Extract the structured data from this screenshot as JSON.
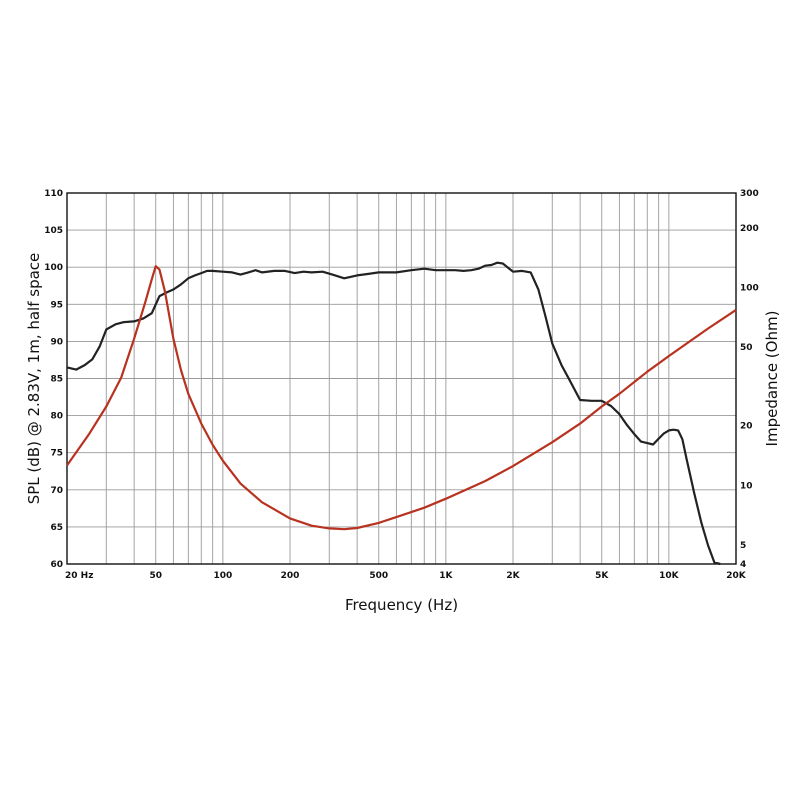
{
  "chart_data": {
    "type": "line",
    "title": "",
    "xlabel": "Frequency (Hz)",
    "ylabel": "SPL (dB) @ 2.83V, 1m, half space",
    "y2label": "Impedance (Ohm)",
    "xscale": "log",
    "xlim": [
      20,
      20000
    ],
    "ylim": [
      60,
      110
    ],
    "y2scale": "log",
    "y2lim": [
      4,
      300
    ],
    "grid": true,
    "legend": "none",
    "x_ticks": [
      {
        "value": 20,
        "label": "20  Hz"
      },
      {
        "value": 50,
        "label": "50"
      },
      {
        "value": 100,
        "label": "100"
      },
      {
        "value": 200,
        "label": "200"
      },
      {
        "value": 500,
        "label": "500"
      },
      {
        "value": 1000,
        "label": "1K"
      },
      {
        "value": 2000,
        "label": "2K"
      },
      {
        "value": 5000,
        "label": "5K"
      },
      {
        "value": 10000,
        "label": "10K"
      },
      {
        "value": 20000,
        "label": "20K"
      }
    ],
    "y_ticks": [
      {
        "value": 60,
        "label": "60"
      },
      {
        "value": 65,
        "label": "65"
      },
      {
        "value": 70,
        "label": "70"
      },
      {
        "value": 75,
        "label": "75"
      },
      {
        "value": 80,
        "label": "80"
      },
      {
        "value": 85,
        "label": "85"
      },
      {
        "value": 90,
        "label": "90"
      },
      {
        "value": 95,
        "label": "95"
      },
      {
        "value": 100,
        "label": "100"
      },
      {
        "value": 105,
        "label": "105"
      },
      {
        "value": 110,
        "label": "110"
      }
    ],
    "y2_ticks": [
      {
        "value": 4,
        "label": "4"
      },
      {
        "value": 5,
        "label": "5"
      },
      {
        "value": 10,
        "label": "10"
      },
      {
        "value": 20,
        "label": "20"
      },
      {
        "value": 50,
        "label": "50"
      },
      {
        "value": 100,
        "label": "100"
      },
      {
        "value": 200,
        "label": "200"
      },
      {
        "value": 300,
        "label": "300"
      }
    ],
    "series": [
      {
        "axis": "left",
        "color": "#222222",
        "x": [
          20,
          22,
          24,
          26,
          28,
          30,
          33,
          36,
          40,
          44,
          48,
          52,
          56,
          60,
          65,
          70,
          75,
          80,
          85,
          90,
          100,
          110,
          120,
          130,
          140,
          150,
          170,
          190,
          210,
          230,
          250,
          280,
          310,
          350,
          400,
          450,
          500,
          550,
          600,
          700,
          800,
          900,
          1000,
          1100,
          1200,
          1300,
          1400,
          1500,
          1600,
          1700,
          1800,
          2000,
          2200,
          2400,
          2600,
          2800,
          3000,
          3300,
          3600,
          4000,
          4500,
          5000,
          5500,
          6000,
          6500,
          7000,
          7500,
          8000,
          8500,
          9000,
          9500,
          10000,
          10500,
          11000,
          11500,
          12000,
          13000,
          14000,
          15000,
          16000,
          17000
        ],
        "values": [
          86.5,
          86.2,
          86.8,
          87.6,
          89.3,
          91.6,
          92.3,
          92.6,
          92.7,
          93.1,
          93.8,
          96.1,
          96.6,
          97.0,
          97.7,
          98.5,
          98.9,
          99.2,
          99.5,
          99.5,
          99.4,
          99.3,
          99.0,
          99.3,
          99.6,
          99.3,
          99.5,
          99.5,
          99.2,
          99.4,
          99.3,
          99.4,
          99.0,
          98.5,
          98.9,
          99.1,
          99.3,
          99.3,
          99.3,
          99.6,
          99.8,
          99.6,
          99.6,
          99.6,
          99.5,
          99.6,
          99.8,
          100.2,
          100.3,
          100.6,
          100.5,
          99.4,
          99.5,
          99.3,
          97.0,
          93.3,
          89.7,
          86.8,
          84.7,
          82.1,
          82.0,
          82.0,
          81.3,
          80.2,
          78.7,
          77.5,
          76.5,
          76.3,
          76.1,
          76.9,
          77.6,
          78.0,
          78.1,
          78.0,
          76.8,
          74.2,
          69.5,
          65.5,
          62.5,
          60.2,
          59.5
        ]
      },
      {
        "axis": "right",
        "color": "#b8321f",
        "x": [
          20,
          25,
          30,
          35,
          40,
          45,
          48,
          50,
          52,
          55,
          60,
          65,
          70,
          80,
          90,
          100,
          120,
          150,
          200,
          250,
          300,
          350,
          400,
          500,
          600,
          800,
          1000,
          1500,
          2000,
          3000,
          4000,
          5000,
          6000,
          8000,
          10000,
          15000,
          20000
        ],
        "values": [
          12.6,
          18.0,
          25.0,
          35.0,
          55.0,
          85.0,
          110.0,
          128.0,
          123.0,
          95.0,
          55.0,
          38.0,
          29.0,
          20.5,
          16.0,
          13.3,
          10.2,
          8.2,
          6.8,
          6.25,
          6.05,
          6.0,
          6.08,
          6.45,
          6.9,
          7.7,
          8.55,
          10.5,
          12.5,
          16.5,
          20.5,
          25.0,
          29.0,
          37.5,
          45.0,
          62.0,
          77.0
        ]
      }
    ]
  }
}
